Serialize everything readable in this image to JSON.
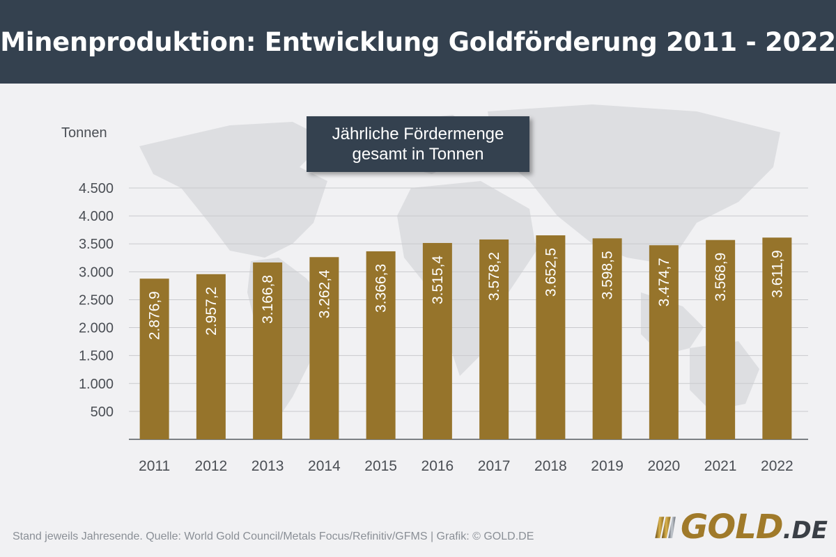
{
  "header": {
    "title": "Minenproduktion: Entwicklung Goldförderung 2011 - 2022"
  },
  "legend": {
    "text": "Jährliche Fördermenge gesamt in Tonnen"
  },
  "footer": {
    "source": "Stand jeweils Jahresende. Quelle: World Gold Council/Metals Focus/Refinitiv/GFMS  |  Grafik: © GOLD.DE"
  },
  "logo": {
    "word": "GOLD",
    "tld": ".DE"
  },
  "colors": {
    "header_bg": "#34414f",
    "bar": "#96742b",
    "background": "#f1f1f3",
    "gridline": "#c9cacd",
    "axis_text": "#4a4e54"
  },
  "chart_data": {
    "type": "bar",
    "title": "Jährliche Fördermenge gesamt in Tonnen",
    "ylabel": "Tonnen",
    "xlabel": "",
    "ylim": [
      0,
      4500
    ],
    "yticks": [
      500,
      1000,
      1500,
      2000,
      2500,
      3000,
      3500,
      4000,
      4500
    ],
    "ytick_labels": [
      "500",
      "1.000",
      "1.500",
      "2.000",
      "2.500",
      "3.000",
      "3.500",
      "4.000",
      "4.500"
    ],
    "grid": true,
    "categories": [
      "2011",
      "2012",
      "2013",
      "2014",
      "2015",
      "2016",
      "2017",
      "2018",
      "2019",
      "2020",
      "2021",
      "2022"
    ],
    "values": [
      2876.9,
      2957.2,
      3166.8,
      3262.4,
      3366.3,
      3515.4,
      3578.2,
      3652.5,
      3598.5,
      3474.7,
      3568.9,
      3611.9
    ],
    "value_labels": [
      "2.876,9",
      "2.957,2",
      "3.166,8",
      "3.262,4",
      "3.366,3",
      "3.515,4",
      "3.578,2",
      "3.652,5",
      "3.598,5",
      "3.474,7",
      "3.568,9",
      "3.611,9"
    ]
  }
}
